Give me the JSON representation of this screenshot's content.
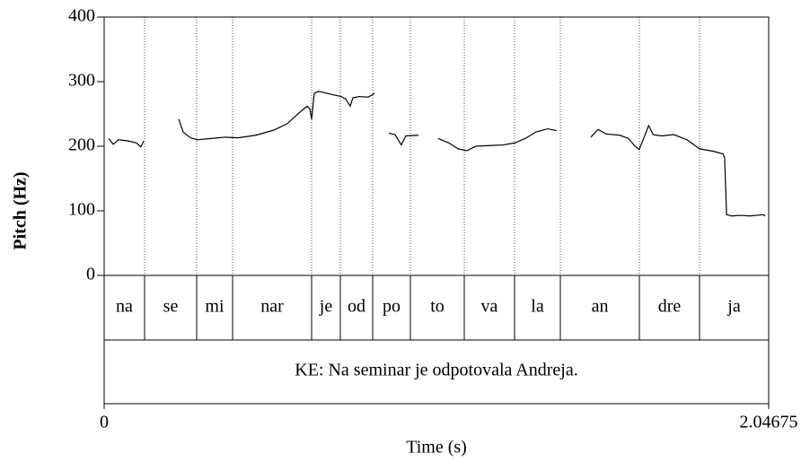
{
  "chart_data": {
    "type": "line",
    "ylabel": "Pitch (Hz)",
    "xlabel": "Time (s)",
    "xlim": [
      0,
      2.04675
    ],
    "xticks": [
      0,
      2.04675
    ],
    "ylim": [
      0,
      400
    ],
    "yticks": [
      0,
      100,
      200,
      300,
      400
    ],
    "x": [
      0.014,
      0.028,
      0.044,
      0.077,
      0.1,
      0.113,
      0.122,
      0.17,
      0.2296,
      0.2434,
      0.2655,
      0.2876,
      0.3291,
      0.3706,
      0.4121,
      0.4674,
      0.5227,
      0.5642,
      0.6057,
      0.6251,
      0.6334,
      0.6389,
      0.6472,
      0.661,
      0.7025,
      0.7302,
      0.744,
      0.7578,
      0.7661,
      0.7855,
      0.8132,
      0.833,
      0.85,
      0.877,
      0.896,
      0.915,
      0.929,
      0.968,
      1.0,
      1.029,
      1.062,
      1.09,
      1.117,
      1.145,
      1.187,
      1.228,
      1.264,
      1.297,
      1.33,
      1.366,
      1.394,
      1.45,
      1.499,
      1.521,
      1.546,
      1.588,
      1.615,
      1.635,
      1.648,
      1.664,
      1.677,
      1.691,
      1.718,
      1.754,
      1.795,
      1.834,
      1.878,
      1.906,
      1.911,
      1.917,
      1.933,
      1.961,
      1.989,
      2.03,
      2.036
    ],
    "series": [
      {
        "name": "pitch",
        "color": "#000000",
        "values": [
          212,
          203,
          210,
          208,
          205,
          199,
          208,
          null,
          242,
          222,
          213,
          210,
          212,
          214,
          213,
          217,
          225,
          235,
          254,
          262,
          258,
          242,
          282,
          285,
          280,
          277,
          273,
          262,
          275,
          277,
          276,
          282,
          null,
          220,
          218,
          202,
          216,
          217,
          null,
          212,
          205,
          196,
          193,
          200,
          201,
          202,
          205,
          212,
          222,
          227,
          224,
          null,
          214,
          226,
          219,
          217,
          212,
          200,
          195,
          215,
          232,
          218,
          216,
          218,
          210,
          196,
          192,
          188,
          182,
          94,
          92,
          93,
          92,
          94,
          92
        ]
      }
    ],
    "syllables": [
      "na",
      "se",
      "mi",
      "nar",
      "je",
      "od",
      "po",
      "to",
      "va",
      "la",
      "an",
      "dre",
      "ja"
    ],
    "boundaries": [
      0.1245,
      0.2849,
      0.3955,
      0.6389,
      0.7274,
      0.827,
      0.9432,
      1.1091,
      1.264,
      1.4051,
      1.6485,
      1.8338
    ],
    "sentence": "KE: Na seminar je odpotovala Andreja."
  }
}
